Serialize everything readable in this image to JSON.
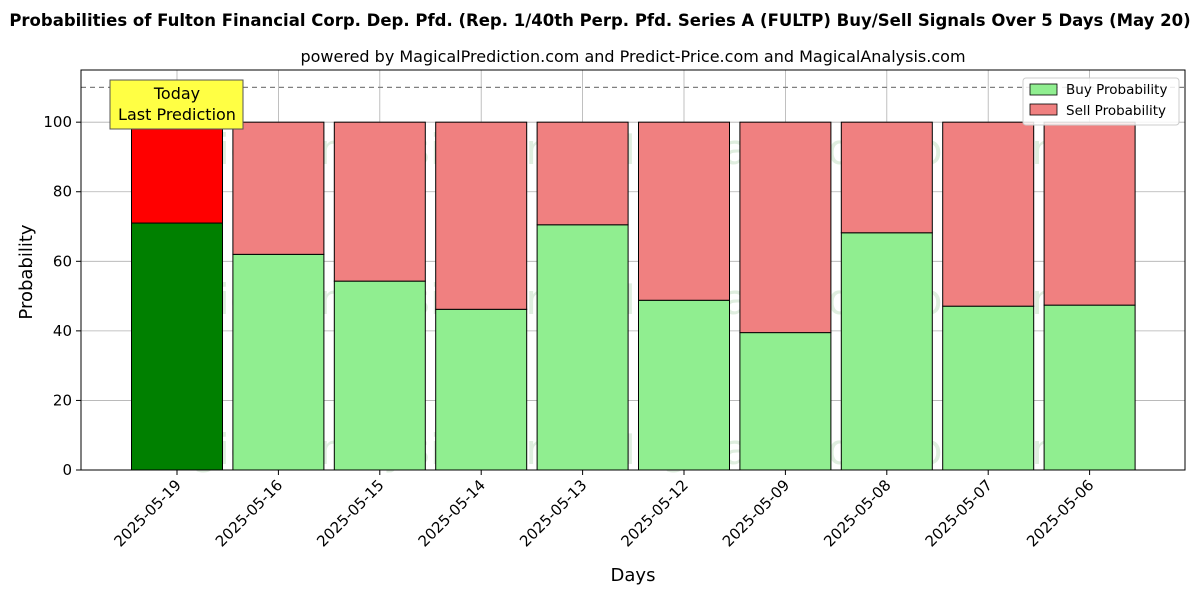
{
  "chart_data": {
    "type": "bar",
    "title": "Probabilities of Fulton Financial Corp. Dep. Pfd. (Rep. 1/40th Perp. Pfd. Series A (FULTP) Buy/Sell Signals Over 5 Days (May 20)",
    "subtitle": "powered by MagicalPrediction.com and Predict-Price.com and MagicalAnalysis.com",
    "xlabel": "Days",
    "ylabel": "Probability",
    "ylim": [
      0,
      115
    ],
    "yticks": [
      0,
      20,
      40,
      60,
      80,
      100
    ],
    "grid": true,
    "stacked": true,
    "legend_position": "top-right",
    "reference_line": 110,
    "categories": [
      "2025-05-19",
      "2025-05-16",
      "2025-05-15",
      "2025-05-14",
      "2025-05-13",
      "2025-05-12",
      "2025-05-09",
      "2025-05-08",
      "2025-05-07",
      "2025-05-06"
    ],
    "series": [
      {
        "name": "Buy Probability",
        "values": [
          71,
          62,
          54.3,
          46.2,
          70.5,
          48.8,
          39.5,
          68.2,
          47.1,
          47.4
        ]
      },
      {
        "name": "Sell Probability",
        "values": [
          29,
          38,
          45.7,
          53.8,
          29.5,
          51.2,
          60.5,
          31.8,
          52.9,
          52.6
        ]
      }
    ],
    "annotation": {
      "lines": [
        "Today",
        "Last Prediction"
      ],
      "category": "2025-05-19"
    }
  },
  "watermarks": [
    "MagicalAnalysis.com",
    "MagicalPrediction.com"
  ],
  "colors": {
    "buy": "#90ee90",
    "sell": "#f08080",
    "buy_today": "#008000",
    "sell_today": "#ff0000",
    "annotation_bg": "#ffff44"
  }
}
